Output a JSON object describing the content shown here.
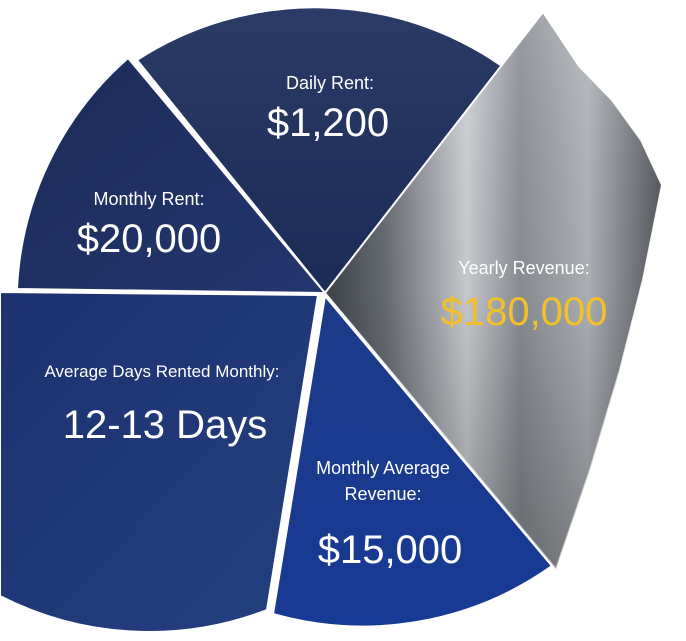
{
  "colors": {
    "navy_dark": "#1d2d55",
    "navy_mid": "#22397a",
    "navy_bright": "#1c3f94",
    "steel": "#8a8f96",
    "gold": "#f3c02b",
    "white": "#ffffff"
  },
  "segments": [
    {
      "id": "daily_rent",
      "label": "Daily Rent:",
      "value": "$1,200"
    },
    {
      "id": "monthly_rent",
      "label": "Monthly Rent:",
      "value": "$20,000"
    },
    {
      "id": "avg_days",
      "label": "Average Days Rented Monthly:",
      "value": "12-13 Days"
    },
    {
      "id": "monthly_avg_revenue",
      "label_line1": "Monthly Average",
      "label_line2": "Revenue:",
      "value": "$15,000"
    },
    {
      "id": "yearly_revenue",
      "label": "Yearly Revenue:",
      "value": "$180,000"
    }
  ]
}
